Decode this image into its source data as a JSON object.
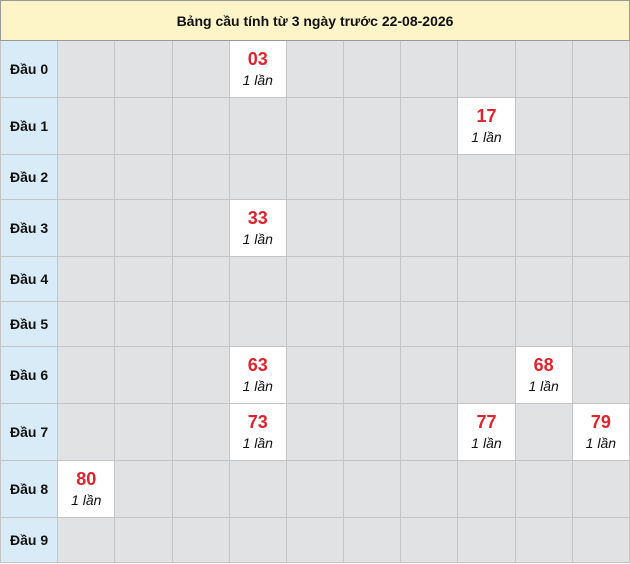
{
  "title": "Bảng cầu tính từ 3 ngày trước 22-08-2026",
  "rows": [
    {
      "label": "Đầu 0",
      "cells": [
        null,
        null,
        null,
        {
          "number": "03",
          "count": "1 lần"
        },
        null,
        null,
        null,
        null,
        null,
        null
      ]
    },
    {
      "label": "Đầu 1",
      "cells": [
        null,
        null,
        null,
        null,
        null,
        null,
        null,
        {
          "number": "17",
          "count": "1 lần"
        },
        null,
        null
      ]
    },
    {
      "label": "Đầu 2",
      "cells": [
        null,
        null,
        null,
        null,
        null,
        null,
        null,
        null,
        null,
        null
      ]
    },
    {
      "label": "Đầu 3",
      "cells": [
        null,
        null,
        null,
        {
          "number": "33",
          "count": "1 lần"
        },
        null,
        null,
        null,
        null,
        null,
        null
      ]
    },
    {
      "label": "Đầu 4",
      "cells": [
        null,
        null,
        null,
        null,
        null,
        null,
        null,
        null,
        null,
        null
      ]
    },
    {
      "label": "Đầu 5",
      "cells": [
        null,
        null,
        null,
        null,
        null,
        null,
        null,
        null,
        null,
        null
      ]
    },
    {
      "label": "Đầu 6",
      "cells": [
        null,
        null,
        null,
        {
          "number": "63",
          "count": "1 lần"
        },
        null,
        null,
        null,
        null,
        {
          "number": "68",
          "count": "1 lần"
        },
        null
      ]
    },
    {
      "label": "Đầu 7",
      "cells": [
        null,
        null,
        null,
        {
          "number": "73",
          "count": "1 lần"
        },
        null,
        null,
        null,
        {
          "number": "77",
          "count": "1 lần"
        },
        null,
        {
          "number": "79",
          "count": "1 lần"
        }
      ]
    },
    {
      "label": "Đầu 8",
      "cells": [
        {
          "number": "80",
          "count": "1 lần"
        },
        null,
        null,
        null,
        null,
        null,
        null,
        null,
        null,
        null
      ]
    },
    {
      "label": "Đầu 9",
      "cells": [
        null,
        null,
        null,
        null,
        null,
        null,
        null,
        null,
        null,
        null
      ]
    }
  ]
}
